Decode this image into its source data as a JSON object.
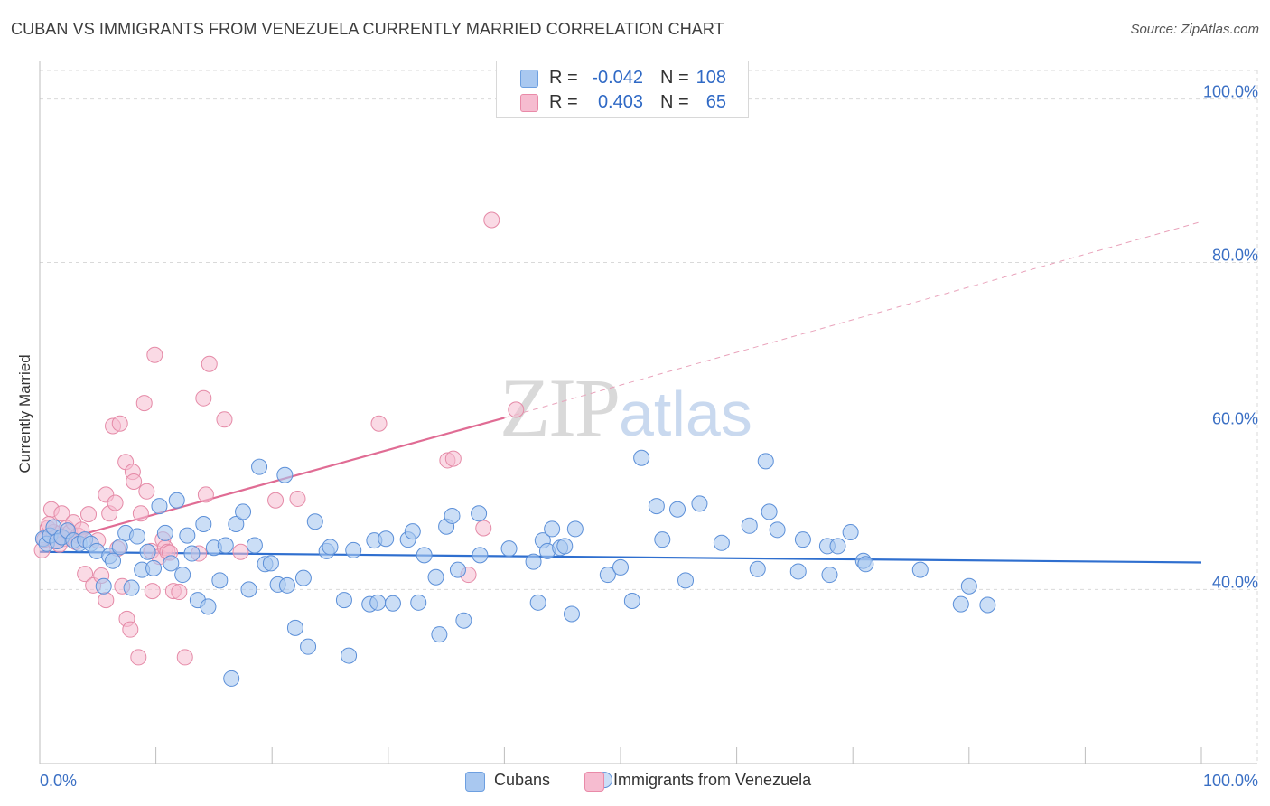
{
  "title": "CUBAN VS IMMIGRANTS FROM VENEZUELA CURRENTLY MARRIED CORRELATION CHART",
  "source": "Source: ZipAtlas.com",
  "watermark": {
    "zip": "ZIP",
    "atlas": "atlas"
  },
  "legend_top": {
    "rows": [
      {
        "r_label": "R =",
        "r_value": "-0.042",
        "n_label": "N =",
        "n_value": "108",
        "color": "#a9c8f0",
        "border": "#6d9fe0"
      },
      {
        "r_label": "R =",
        "r_value": "0.403",
        "n_label": "N =",
        "n_value": "65",
        "color": "#f6bcd0",
        "border": "#e98aa8"
      }
    ]
  },
  "legend_bottom": [
    {
      "label": "Cubans",
      "color": "#a9c8f0",
      "border": "#6d9fe0"
    },
    {
      "label": "Immigrants from Venezuela",
      "color": "#f6bcd0",
      "border": "#e98aa8"
    }
  ],
  "chart_data": {
    "type": "scatter",
    "title": "CUBAN VS IMMIGRANTS FROM VENEZUELA CURRENTLY MARRIED CORRELATION CHART",
    "xlabel": "",
    "ylabel": "Currently Married",
    "xlim": [
      0,
      100
    ],
    "ylim": [
      18.7,
      103.5
    ],
    "x_tick_labels": [
      {
        "value": 0,
        "label": "0.0%"
      },
      {
        "value": 100,
        "label": "100.0%"
      }
    ],
    "y_tick_labels": [
      {
        "value": 100,
        "label": "100.0%"
      },
      {
        "value": 80,
        "label": "80.0%"
      },
      {
        "value": 60,
        "label": "60.0%"
      },
      {
        "value": 40,
        "label": "40.0%"
      }
    ],
    "grid": true,
    "colors": {
      "cubans_fill": "#a9c8f0",
      "cubans_stroke": "#5b8fd8",
      "cubans_line": "#2f6fcf",
      "ven_fill": "#f6bcd0",
      "ven_stroke": "#e58aa7",
      "ven_line": "#e06c94",
      "grid": "#d9d9d9",
      "axis_text": "#3a6fc4"
    },
    "series": [
      {
        "name": "Cubans",
        "trend": {
          "x0": 0,
          "y0": 44.6,
          "x1": 100,
          "y1": 43.3,
          "style": "solid"
        },
        "points": [
          [
            0.3,
            46.2
          ],
          [
            0.6,
            45.6
          ],
          [
            0.9,
            46.6
          ],
          [
            1.2,
            47.6
          ],
          [
            1.5,
            45.9
          ],
          [
            1.9,
            46.4
          ],
          [
            2.4,
            47.2
          ],
          [
            2.9,
            46.0
          ],
          [
            3.4,
            45.6
          ],
          [
            3.9,
            46.1
          ],
          [
            4.4,
            45.6
          ],
          [
            4.9,
            44.7
          ],
          [
            5.5,
            40.4
          ],
          [
            6.0,
            44.1
          ],
          [
            6.3,
            43.5
          ],
          [
            6.9,
            45.2
          ],
          [
            7.4,
            46.9
          ],
          [
            7.9,
            40.2
          ],
          [
            8.4,
            46.5
          ],
          [
            8.8,
            42.4
          ],
          [
            9.3,
            44.6
          ],
          [
            9.8,
            42.6
          ],
          [
            10.3,
            50.2
          ],
          [
            10.8,
            46.9
          ],
          [
            11.3,
            43.2
          ],
          [
            11.8,
            50.9
          ],
          [
            12.3,
            41.8
          ],
          [
            12.7,
            46.6
          ],
          [
            13.1,
            44.4
          ],
          [
            13.6,
            38.7
          ],
          [
            14.1,
            48.0
          ],
          [
            14.5,
            37.9
          ],
          [
            15.0,
            45.1
          ],
          [
            15.5,
            41.1
          ],
          [
            16.0,
            45.4
          ],
          [
            16.5,
            29.1
          ],
          [
            16.9,
            48.0
          ],
          [
            17.5,
            49.5
          ],
          [
            18.0,
            40.0
          ],
          [
            18.5,
            45.4
          ],
          [
            18.9,
            55.0
          ],
          [
            19.4,
            43.1
          ],
          [
            19.9,
            43.2
          ],
          [
            20.5,
            40.6
          ],
          [
            21.1,
            54.0
          ],
          [
            21.3,
            40.5
          ],
          [
            22.0,
            35.3
          ],
          [
            22.7,
            41.4
          ],
          [
            23.1,
            33.0
          ],
          [
            23.7,
            48.3
          ],
          [
            24.7,
            44.7
          ],
          [
            25.0,
            45.2
          ],
          [
            26.2,
            38.7
          ],
          [
            26.6,
            31.9
          ],
          [
            27.0,
            44.8
          ],
          [
            28.4,
            38.2
          ],
          [
            28.8,
            46.0
          ],
          [
            29.1,
            38.4
          ],
          [
            29.8,
            46.2
          ],
          [
            30.4,
            38.3
          ],
          [
            31.7,
            46.1
          ],
          [
            32.1,
            47.1
          ],
          [
            32.6,
            38.4
          ],
          [
            33.1,
            44.2
          ],
          [
            34.1,
            41.5
          ],
          [
            34.4,
            34.5
          ],
          [
            35.0,
            47.7
          ],
          [
            35.5,
            49.0
          ],
          [
            36.0,
            42.4
          ],
          [
            36.5,
            36.2
          ],
          [
            37.8,
            49.3
          ],
          [
            37.9,
            44.2
          ],
          [
            40.4,
            45.0
          ],
          [
            42.5,
            43.4
          ],
          [
            42.9,
            38.4
          ],
          [
            43.3,
            46.0
          ],
          [
            43.7,
            44.7
          ],
          [
            44.1,
            47.4
          ],
          [
            44.8,
            45.1
          ],
          [
            45.2,
            45.3
          ],
          [
            45.8,
            37.0
          ],
          [
            46.1,
            47.4
          ],
          [
            48.6,
            16.7
          ],
          [
            48.9,
            41.8
          ],
          [
            50.0,
            42.7
          ],
          [
            51.0,
            38.6
          ],
          [
            51.8,
            56.1
          ],
          [
            53.1,
            50.2
          ],
          [
            53.6,
            46.1
          ],
          [
            54.9,
            49.8
          ],
          [
            55.6,
            41.1
          ],
          [
            56.8,
            50.5
          ],
          [
            58.7,
            45.7
          ],
          [
            61.1,
            47.8
          ],
          [
            61.8,
            42.5
          ],
          [
            62.5,
            55.7
          ],
          [
            62.8,
            49.5
          ],
          [
            63.5,
            47.3
          ],
          [
            65.3,
            42.2
          ],
          [
            65.7,
            46.1
          ],
          [
            67.8,
            45.3
          ],
          [
            68.0,
            41.8
          ],
          [
            68.7,
            45.3
          ],
          [
            69.8,
            47.0
          ],
          [
            70.9,
            43.5
          ],
          [
            71.1,
            43.1
          ],
          [
            75.8,
            42.4
          ],
          [
            79.3,
            38.2
          ],
          [
            80.0,
            40.4
          ],
          [
            81.6,
            38.1
          ]
        ]
      },
      {
        "name": "Immigrants from Venezuela",
        "trend": {
          "x0": 0,
          "y0": 45.3,
          "x1": 40,
          "y1": 61.0,
          "style": "solid",
          "extension": {
            "x1": 100,
            "y1": 85.0,
            "style": "dashed"
          }
        },
        "points": [
          [
            0.2,
            44.8
          ],
          [
            0.4,
            46.1
          ],
          [
            0.7,
            47.5
          ],
          [
            1.0,
            49.8
          ],
          [
            1.3,
            45.9
          ],
          [
            1.6,
            46.8
          ],
          [
            1.9,
            49.3
          ],
          [
            2.3,
            47.5
          ],
          [
            2.6,
            47.0
          ],
          [
            2.9,
            48.2
          ],
          [
            3.3,
            46.6
          ],
          [
            3.6,
            47.3
          ],
          [
            3.9,
            41.9
          ],
          [
            4.2,
            49.2
          ],
          [
            4.6,
            40.5
          ],
          [
            5.0,
            46.0
          ],
          [
            5.3,
            41.7
          ],
          [
            5.7,
            51.6
          ],
          [
            5.7,
            38.7
          ],
          [
            6.0,
            49.3
          ],
          [
            6.3,
            60.0
          ],
          [
            6.5,
            50.6
          ],
          [
            6.7,
            45.0
          ],
          [
            6.9,
            60.3
          ],
          [
            7.1,
            40.4
          ],
          [
            7.4,
            55.6
          ],
          [
            7.5,
            36.4
          ],
          [
            7.8,
            35.1
          ],
          [
            8.0,
            54.4
          ],
          [
            8.1,
            53.2
          ],
          [
            8.5,
            31.7
          ],
          [
            8.7,
            49.3
          ],
          [
            9.0,
            62.8
          ],
          [
            9.2,
            52.0
          ],
          [
            9.6,
            44.7
          ],
          [
            9.7,
            39.8
          ],
          [
            9.9,
            68.7
          ],
          [
            10.3,
            44.0
          ],
          [
            10.6,
            46.1
          ],
          [
            10.8,
            45.1
          ],
          [
            11.0,
            44.6
          ],
          [
            11.2,
            44.5
          ],
          [
            11.5,
            39.8
          ],
          [
            12.0,
            39.7
          ],
          [
            12.5,
            31.7
          ],
          [
            13.7,
            44.4
          ],
          [
            14.1,
            63.4
          ],
          [
            14.3,
            51.6
          ],
          [
            14.6,
            67.6
          ],
          [
            15.9,
            60.8
          ],
          [
            17.3,
            44.6
          ],
          [
            20.3,
            50.9
          ],
          [
            22.2,
            51.1
          ],
          [
            29.2,
            60.3
          ],
          [
            35.1,
            55.8
          ],
          [
            35.6,
            56.0
          ],
          [
            36.9,
            41.8
          ],
          [
            38.2,
            47.5
          ],
          [
            38.9,
            85.2
          ],
          [
            41.0,
            62.0
          ],
          [
            1.2,
            47.0
          ],
          [
            2.1,
            46.2
          ],
          [
            0.8,
            48.0
          ],
          [
            3.1,
            45.8
          ],
          [
            1.7,
            45.5
          ]
        ]
      }
    ]
  }
}
